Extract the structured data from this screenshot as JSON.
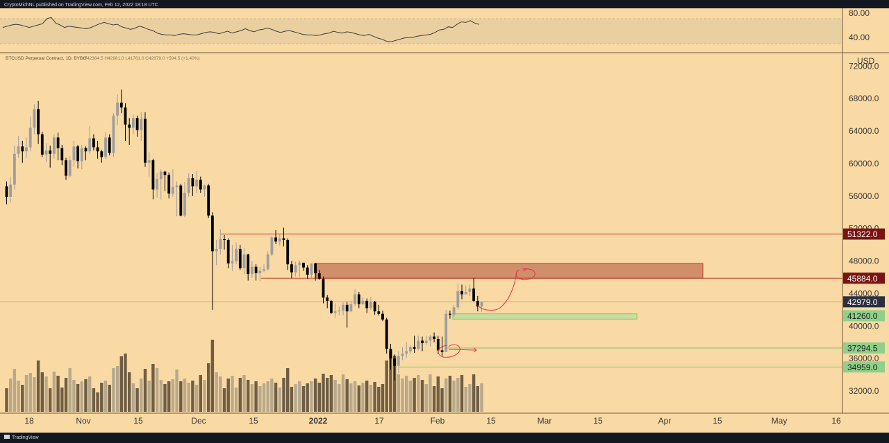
{
  "header": {
    "publisher": "CryptoMichNL published on TradingView.com, Feb 12, 2022 18:18 UTC",
    "symbol": "BTCUSD Perpetual Contract, 1D, BYBIT",
    "ohlc": "O42384.5  H42981.0  L41761.0  C42979.0  +594.5 (+1.40%)",
    "currency": "USD"
  },
  "footer": {
    "brand": "TradingView"
  },
  "colors": {
    "background": "#f9d9a4",
    "frame": "#131722",
    "up_candle": "#9e9e9e",
    "down_candle": "#000000",
    "resistance": "#c0392b",
    "support": "#27ae60",
    "supply_zone": "#d08e6b",
    "demand_zone": "#c8dea0",
    "rsi_band": "#ead0a0"
  },
  "chart_data": [
    {
      "type": "line",
      "name": "RSI",
      "ylim": [
        25,
        95
      ],
      "y_ticks": [
        "80.00",
        "40.00"
      ],
      "band": [
        30,
        70
      ],
      "values": [
        56,
        58,
        60,
        61,
        60,
        58,
        56,
        58,
        60,
        62,
        70,
        72,
        63,
        60,
        56,
        58,
        57,
        56,
        55,
        54,
        56,
        59,
        62,
        64,
        62,
        60,
        61,
        57,
        55,
        53,
        55,
        58,
        56,
        53,
        51,
        47,
        45,
        44,
        44,
        43,
        45,
        46,
        45,
        44,
        44,
        46,
        48,
        49,
        48,
        46,
        48,
        50,
        47,
        49,
        51,
        54,
        51,
        49,
        52,
        53,
        55,
        53,
        50,
        48,
        50,
        51,
        49,
        47,
        45,
        44,
        44,
        43,
        44,
        46,
        47,
        50,
        48,
        47,
        49,
        48,
        46,
        44,
        43,
        45,
        42,
        39,
        37,
        34,
        33,
        35,
        37,
        39,
        40,
        40,
        42,
        43,
        44,
        45,
        48,
        52,
        53,
        57,
        56,
        61,
        65,
        64,
        67,
        63,
        61
      ]
    },
    {
      "type": "bar",
      "name": "BTCUSD Perpetual Contract, 1D, BYBIT",
      "ylim": [
        29000,
        75000
      ],
      "y_ticks": [
        "32000.0",
        "36000.0",
        "40000.0",
        "44000.0",
        "48000.0",
        "52000.0",
        "56000.0",
        "60000.0",
        "64000.0",
        "68000.0",
        "72000.0"
      ],
      "x_ticks": [
        "18",
        "Nov",
        "15",
        "Dec",
        "15",
        "2022",
        "17",
        "Feb",
        "15",
        "Mar",
        "15",
        "Apr",
        "15",
        "May",
        "16"
      ],
      "candles": [
        [
          57200,
          55900,
          57800,
          55000,
          2
        ],
        [
          55900,
          57400,
          58400,
          55200,
          3
        ],
        [
          57400,
          61200,
          62200,
          56800,
          4
        ],
        [
          61200,
          62100,
          63400,
          60700,
          3
        ],
        [
          62100,
          61500,
          62800,
          60100,
          2
        ],
        [
          61500,
          62000,
          63200,
          60700,
          3
        ],
        [
          62000,
          64400,
          65800,
          61500,
          4
        ],
        [
          64400,
          66700,
          67300,
          63600,
          3
        ],
        [
          66700,
          63600,
          67700,
          62400,
          5
        ],
        [
          63600,
          61100,
          63900,
          60800,
          4
        ],
        [
          61100,
          61600,
          62500,
          60200,
          3
        ],
        [
          61600,
          61200,
          62200,
          59500,
          2
        ],
        [
          61200,
          63200,
          63600,
          60600,
          4
        ],
        [
          63200,
          61900,
          63800,
          60400,
          3
        ],
        [
          61900,
          60400,
          62300,
          59800,
          2
        ],
        [
          60400,
          58500,
          60700,
          58000,
          3
        ],
        [
          58500,
          60400,
          60900,
          58300,
          4
        ],
        [
          60400,
          62100,
          62800,
          59600,
          3
        ],
        [
          62100,
          60300,
          62300,
          59400,
          2
        ],
        [
          60300,
          61900,
          62300,
          59300,
          2
        ],
        [
          61900,
          61500,
          62100,
          60400,
          3
        ],
        [
          61500,
          63100,
          64600,
          61200,
          3
        ],
        [
          63100,
          62000,
          63600,
          61600,
          2
        ],
        [
          62000,
          61500,
          62800,
          60600,
          1
        ],
        [
          61500,
          60800,
          61700,
          60100,
          2
        ],
        [
          60800,
          63200,
          63900,
          60600,
          3
        ],
        [
          63200,
          61300,
          63600,
          61000,
          2
        ],
        [
          61300,
          65900,
          66200,
          60800,
          4
        ],
        [
          65900,
          67500,
          68500,
          64700,
          5
        ],
        [
          67500,
          66900,
          69100,
          66200,
          6
        ],
        [
          66900,
          64800,
          67400,
          62800,
          6
        ],
        [
          64800,
          64400,
          65600,
          62300,
          4
        ],
        [
          64400,
          65600,
          66000,
          63600,
          2
        ],
        [
          65600,
          64100,
          65900,
          63300,
          2
        ],
        [
          64100,
          65500,
          66300,
          62800,
          3
        ],
        [
          65500,
          60100,
          66300,
          59600,
          4
        ],
        [
          60100,
          60400,
          61400,
          58400,
          3
        ],
        [
          60400,
          56800,
          60600,
          55600,
          5
        ],
        [
          56800,
          58100,
          58800,
          55800,
          4
        ],
        [
          58100,
          59000,
          59300,
          55600,
          3
        ],
        [
          59000,
          58600,
          59100,
          56600,
          2
        ],
        [
          58600,
          56300,
          58900,
          55700,
          2
        ],
        [
          56300,
          57100,
          59300,
          55900,
          3
        ],
        [
          57100,
          57300,
          57800,
          53500,
          4
        ],
        [
          57300,
          53600,
          57500,
          53500,
          3
        ],
        [
          53600,
          56400,
          57700,
          53400,
          3
        ],
        [
          56400,
          58200,
          58800,
          55900,
          2
        ],
        [
          58200,
          57200,
          58700,
          56000,
          3
        ],
        [
          57200,
          58000,
          59100,
          56400,
          2
        ],
        [
          58000,
          56800,
          58400,
          56400,
          3
        ],
        [
          56800,
          57300,
          57400,
          55900,
          3
        ],
        [
          57300,
          53600,
          57500,
          53300,
          5
        ],
        [
          53600,
          49200,
          54000,
          42000,
          8
        ],
        [
          49200,
          49500,
          50600,
          47500,
          4
        ],
        [
          49500,
          50700,
          51900,
          48800,
          3
        ],
        [
          50700,
          50600,
          51200,
          49400,
          2
        ],
        [
          50600,
          47700,
          50800,
          47100,
          3
        ],
        [
          47700,
          48000,
          50000,
          46800,
          3
        ],
        [
          48000,
          49500,
          50300,
          47600,
          2
        ],
        [
          49500,
          47100,
          50000,
          46900,
          3
        ],
        [
          47100,
          48800,
          49600,
          46400,
          3
        ],
        [
          48800,
          46400,
          48900,
          45600,
          3
        ],
        [
          46400,
          47300,
          48000,
          45900,
          2
        ],
        [
          47300,
          46500,
          47600,
          45600,
          2
        ],
        [
          46500,
          46800,
          47300,
          45500,
          2
        ],
        [
          46800,
          47000,
          47600,
          46600,
          2
        ],
        [
          47000,
          48800,
          49200,
          46800,
          3
        ],
        [
          48800,
          50900,
          51100,
          48600,
          3
        ],
        [
          50900,
          50400,
          51800,
          50100,
          2
        ],
        [
          50400,
          50800,
          51400,
          49900,
          2
        ],
        [
          50800,
          50600,
          52100,
          49800,
          3
        ],
        [
          50600,
          47600,
          50800,
          46900,
          4
        ],
        [
          47600,
          46600,
          48000,
          45900,
          2
        ],
        [
          46600,
          47500,
          47900,
          46100,
          2
        ],
        [
          47500,
          47800,
          48100,
          46000,
          2
        ],
        [
          47800,
          47200,
          47700,
          46800,
          2
        ],
        [
          47200,
          46300,
          47500,
          45800,
          2
        ],
        [
          46300,
          47700,
          47600,
          45900,
          3
        ],
        [
          47700,
          46500,
          47800,
          45600,
          3
        ],
        [
          46500,
          45800,
          46900,
          45700,
          2
        ],
        [
          45800,
          43500,
          46100,
          42800,
          4
        ],
        [
          43500,
          43100,
          43800,
          42200,
          3
        ],
        [
          43100,
          41600,
          43200,
          41500,
          3
        ],
        [
          41600,
          41800,
          42800,
          41000,
          3
        ],
        [
          41800,
          41900,
          42400,
          41300,
          2
        ],
        [
          41900,
          42600,
          42900,
          41300,
          3
        ],
        [
          42600,
          41800,
          43000,
          39800,
          3
        ],
        [
          41800,
          42700,
          43100,
          41700,
          2
        ],
        [
          42700,
          43900,
          44500,
          42500,
          3
        ],
        [
          43900,
          42700,
          44200,
          42200,
          2
        ],
        [
          42700,
          43100,
          43500,
          42600,
          2
        ],
        [
          43100,
          42200,
          43400,
          41600,
          3
        ],
        [
          42200,
          43000,
          43600,
          42000,
          2
        ],
        [
          43000,
          41800,
          43100,
          41400,
          2
        ],
        [
          41800,
          41500,
          42600,
          41300,
          2
        ],
        [
          41500,
          40800,
          41900,
          40600,
          2
        ],
        [
          40800,
          37200,
          41000,
          36600,
          5
        ],
        [
          37200,
          36000,
          37800,
          34600,
          7
        ],
        [
          36000,
          35100,
          36500,
          33300,
          6
        ],
        [
          35100,
          36300,
          36900,
          34200,
          4
        ],
        [
          36300,
          36600,
          37400,
          35800,
          3
        ],
        [
          36600,
          36900,
          38000,
          36100,
          3
        ],
        [
          36900,
          37400,
          37600,
          36600,
          3
        ],
        [
          37400,
          37200,
          38800,
          36700,
          3
        ],
        [
          37200,
          38200,
          38800,
          37000,
          3
        ],
        [
          38200,
          37900,
          38700,
          36900,
          3
        ],
        [
          37900,
          38200,
          38800,
          37700,
          2
        ],
        [
          38200,
          38700,
          38900,
          37500,
          3
        ],
        [
          38700,
          38400,
          39200,
          38000,
          2
        ],
        [
          38400,
          37000,
          38800,
          36600,
          3
        ],
        [
          37000,
          36800,
          38700,
          36300,
          2
        ],
        [
          36800,
          41500,
          42000,
          36800,
          3
        ],
        [
          41500,
          41400,
          41900,
          40900,
          3
        ],
        [
          41400,
          42300,
          42600,
          41100,
          3
        ],
        [
          42300,
          44300,
          45200,
          42000,
          3
        ],
        [
          44300,
          43900,
          45100,
          43300,
          3
        ],
        [
          43900,
          44200,
          45000,
          43900,
          2
        ],
        [
          44200,
          44600,
          45100,
          43700,
          2
        ],
        [
          44600,
          43100,
          45900,
          43000,
          3
        ],
        [
          43100,
          42400,
          43700,
          41800,
          2
        ],
        [
          42400,
          42979,
          42981,
          41761,
          2
        ]
      ],
      "levels": [
        {
          "label": "51322.0",
          "kind": "resistance"
        },
        {
          "label": "45884.0",
          "kind": "resistance"
        },
        {
          "label": "42979.0",
          "kind": "last"
        },
        {
          "label": "41260.0",
          "kind": "support"
        },
        {
          "label": "37294.5",
          "kind": "support"
        },
        {
          "label": "34959.0",
          "kind": "support"
        }
      ],
      "zones": [
        {
          "kind": "supply",
          "y": [
            45884,
            47700
          ]
        },
        {
          "kind": "demand",
          "y": [
            40850,
            41500
          ]
        }
      ]
    }
  ]
}
